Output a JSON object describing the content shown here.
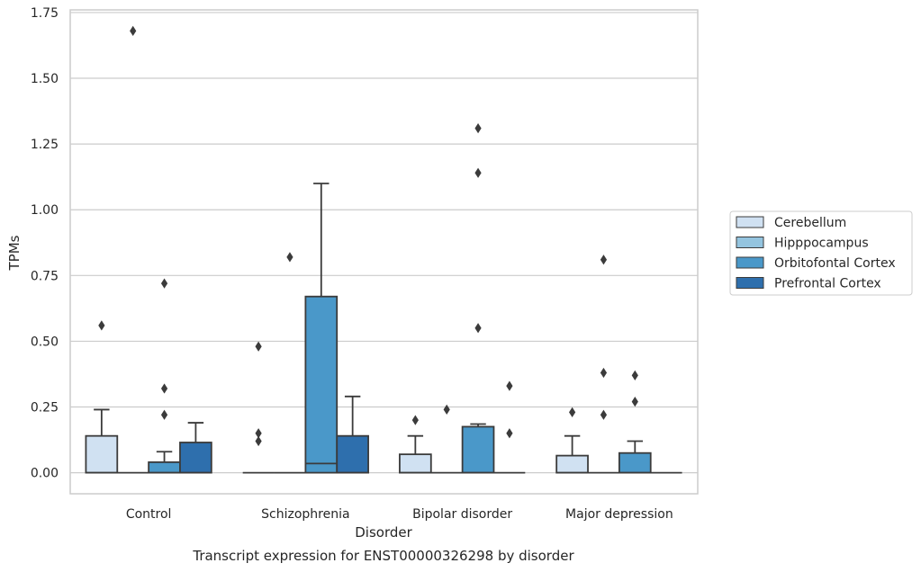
{
  "chart_data": {
    "type": "box",
    "caption": "Transcript expression for ENST00000326298 by disorder",
    "xlabel": "Disorder",
    "ylabel": "TPMs",
    "ylim": [
      -0.08,
      1.76
    ],
    "yticks": [
      "0.00",
      "0.25",
      "0.50",
      "0.75",
      "1.00",
      "1.25",
      "1.50",
      "1.75"
    ],
    "ytick_values": [
      0,
      0.25,
      0.5,
      0.75,
      1.0,
      1.25,
      1.5,
      1.75
    ],
    "grid": "horizontal",
    "legend_position": "right",
    "categories": [
      "Control",
      "Schizophrenia",
      "Bipolar disorder",
      "Major depression"
    ],
    "series": [
      {
        "name": "Cerebellum",
        "color": "#d0e1f2",
        "boxes": [
          {
            "q1": 0,
            "median": 0,
            "q3": 0.14,
            "whisker_low": 0,
            "whisker_high": 0.24,
            "outliers": [
              0.56
            ]
          },
          {
            "q1": 0,
            "median": 0,
            "q3": 0,
            "whisker_low": 0,
            "whisker_high": 0,
            "outliers": [
              0.48,
              0.15,
              0.12
            ]
          },
          {
            "q1": 0,
            "median": 0,
            "q3": 0.07,
            "whisker_low": 0,
            "whisker_high": 0.14,
            "outliers": [
              0.2
            ]
          },
          {
            "q1": 0,
            "median": 0,
            "q3": 0.065,
            "whisker_low": 0,
            "whisker_high": 0.14,
            "outliers": [
              0.23
            ]
          }
        ]
      },
      {
        "name": "Hipppocampus",
        "color": "#94c4df",
        "boxes": [
          {
            "q1": 0,
            "median": 0,
            "q3": 0,
            "whisker_low": 0,
            "whisker_high": 0,
            "outliers": [
              1.68
            ]
          },
          {
            "q1": 0,
            "median": 0,
            "q3": 0,
            "whisker_low": 0,
            "whisker_high": 0,
            "outliers": [
              0.82
            ]
          },
          {
            "q1": 0,
            "median": 0,
            "q3": 0,
            "whisker_low": 0,
            "whisker_high": 0,
            "outliers": [
              0.24
            ]
          },
          {
            "q1": 0,
            "median": 0,
            "q3": 0,
            "whisker_low": 0,
            "whisker_high": 0,
            "outliers": [
              0.81,
              0.38,
              0.22
            ]
          }
        ]
      },
      {
        "name": "Orbitofontal Cortex",
        "color": "#4a98c9",
        "boxes": [
          {
            "q1": 0,
            "median": 0,
            "q3": 0.04,
            "whisker_low": 0,
            "whisker_high": 0.08,
            "outliers": [
              0.72,
              0.32,
              0.22
            ]
          },
          {
            "q1": 0,
            "median": 0.035,
            "q3": 0.67,
            "whisker_low": 0,
            "whisker_high": 1.1,
            "outliers": []
          },
          {
            "q1": 0,
            "median": 0,
            "q3": 0.175,
            "whisker_low": 0,
            "whisker_high": 0.185,
            "outliers": [
              1.31,
              1.14,
              0.55
            ]
          },
          {
            "q1": 0,
            "median": 0,
            "q3": 0.075,
            "whisker_low": 0,
            "whisker_high": 0.12,
            "outliers": [
              0.37,
              0.27
            ]
          }
        ]
      },
      {
        "name": "Prefrontal Cortex",
        "color": "#2e6fad",
        "boxes": [
          {
            "q1": 0,
            "median": 0,
            "q3": 0.115,
            "whisker_low": 0,
            "whisker_high": 0.19,
            "outliers": []
          },
          {
            "q1": 0,
            "median": 0,
            "q3": 0.14,
            "whisker_low": 0,
            "whisker_high": 0.29,
            "outliers": []
          },
          {
            "q1": 0,
            "median": 0,
            "q3": 0,
            "whisker_low": 0,
            "whisker_high": 0,
            "outliers": [
              0.33,
              0.15
            ]
          },
          {
            "q1": 0,
            "median": 0,
            "q3": 0,
            "whisker_low": 0,
            "whisker_high": 0,
            "outliers": []
          }
        ]
      }
    ]
  }
}
